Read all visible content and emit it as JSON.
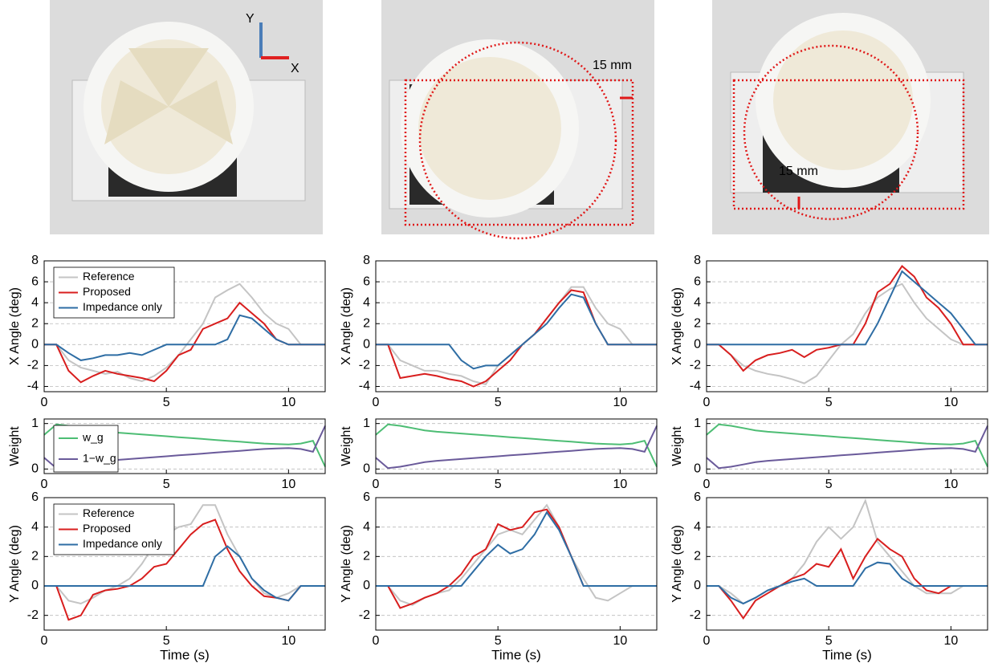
{
  "photos": [
    {
      "labels": [
        "Y",
        "X"
      ]
    },
    {
      "labels": [
        "15 mm"
      ]
    },
    {
      "labels": [
        "15 mm"
      ]
    }
  ],
  "chart_data": [
    {
      "type": "line",
      "ylabel": "X Angle (deg)",
      "legend": "upper left",
      "grid": true,
      "xlim": [
        0,
        11.5
      ],
      "xticks": [
        0,
        5,
        10
      ],
      "ylim": [
        -4.5,
        8
      ],
      "yticks": [
        -4,
        -2,
        0,
        2,
        4,
        6,
        8
      ],
      "x": [
        0,
        0.5,
        1,
        1.5,
        2,
        2.5,
        3,
        3.5,
        4,
        4.5,
        5,
        5.5,
        6,
        6.5,
        7,
        7.5,
        8,
        8.5,
        9,
        9.5,
        10,
        10.5,
        11,
        11.5
      ],
      "series": [
        {
          "name": "Reference",
          "color": "#c4c4c4",
          "values": [
            0,
            0,
            -1.5,
            -2.2,
            -2.5,
            -2.8,
            -2.6,
            -3.2,
            -3.5,
            -3,
            -2.2,
            -1,
            0.5,
            2,
            4.5,
            5.2,
            5.8,
            4.5,
            3,
            2,
            1.5,
            0,
            0,
            0
          ]
        },
        {
          "name": "Proposed",
          "color": "#d81e1e",
          "values": [
            0,
            0,
            -2.5,
            -3.6,
            -3,
            -2.5,
            -2.8,
            -3,
            -3.2,
            -3.5,
            -2.5,
            -1,
            -0.5,
            1.5,
            2,
            2.5,
            4,
            3,
            2,
            0.5,
            0,
            0,
            0,
            0
          ]
        },
        {
          "name": "Impedance only",
          "color": "#2e6da4",
          "values": [
            0,
            0,
            -0.8,
            -1.5,
            -1.3,
            -1,
            -1,
            -0.8,
            -1,
            -0.5,
            0,
            0,
            0,
            0,
            0,
            0.5,
            2.8,
            2.5,
            1.5,
            0.5,
            0,
            0,
            0,
            0
          ]
        }
      ]
    },
    {
      "type": "line",
      "ylabel": "Weight",
      "legend": "upper left",
      "grid": true,
      "xlim": [
        0,
        11.5
      ],
      "xticks": [
        0,
        5,
        10
      ],
      "ylim": [
        -0.1,
        1.1
      ],
      "yticks": [
        0,
        1
      ],
      "x": [
        0,
        0.5,
        1,
        1.5,
        2,
        2.5,
        3,
        3.5,
        4,
        4.5,
        5,
        5.5,
        6,
        6.5,
        7,
        7.5,
        8,
        8.5,
        9,
        9.5,
        10,
        10.5,
        11,
        11.5
      ],
      "series": [
        {
          "name": "w_g",
          "color": "#4dbd74",
          "values": [
            0.75,
            0.98,
            0.95,
            0.9,
            0.85,
            0.82,
            0.8,
            0.78,
            0.76,
            0.74,
            0.72,
            0.7,
            0.68,
            0.66,
            0.64,
            0.62,
            0.6,
            0.58,
            0.56,
            0.55,
            0.54,
            0.56,
            0.62,
            0.05
          ]
        },
        {
          "name": "1−w_g",
          "color": "#6a5a9a",
          "values": [
            0.25,
            0.02,
            0.05,
            0.1,
            0.15,
            0.18,
            0.2,
            0.22,
            0.24,
            0.26,
            0.28,
            0.3,
            0.32,
            0.34,
            0.36,
            0.38,
            0.4,
            0.42,
            0.44,
            0.45,
            0.46,
            0.44,
            0.38,
            0.95
          ]
        }
      ]
    },
    {
      "type": "line",
      "ylabel": "Y Angle (deg)",
      "xlabel": "Time (s)",
      "legend": "upper left",
      "grid": true,
      "xlim": [
        0,
        11.5
      ],
      "xticks": [
        0,
        5,
        10
      ],
      "ylim": [
        -3,
        6
      ],
      "yticks": [
        -2,
        0,
        2,
        4,
        6
      ],
      "x": [
        0,
        0.5,
        1,
        1.5,
        2,
        2.5,
        3,
        3.5,
        4,
        4.5,
        5,
        5.5,
        6,
        6.5,
        7,
        7.5,
        8,
        8.5,
        9,
        9.5,
        10,
        10.5,
        11,
        11.5
      ],
      "series": [
        {
          "name": "Reference",
          "color": "#c4c4c4",
          "values": [
            0,
            0,
            -1,
            -1.2,
            -0.8,
            -0.3,
            0,
            0.5,
            1.5,
            2.8,
            3.5,
            4,
            4.2,
            5.5,
            5.5,
            3.5,
            2,
            0.5,
            -0.5,
            -0.8,
            -0.5,
            0,
            0,
            0
          ]
        },
        {
          "name": "Proposed",
          "color": "#d81e1e",
          "values": [
            0,
            0,
            -2.3,
            -2,
            -0.6,
            -0.3,
            -0.2,
            0,
            0.5,
            1.3,
            1.5,
            2.5,
            3.5,
            4.2,
            4.5,
            2.5,
            1,
            0,
            -0.7,
            -0.8,
            -1,
            0,
            0,
            0
          ]
        },
        {
          "name": "Impedance only",
          "color": "#2e6da4",
          "values": [
            0,
            0,
            0,
            0,
            0,
            0,
            0,
            0,
            0,
            0,
            0,
            0,
            0,
            0,
            2,
            2.7,
            2,
            0.5,
            -0.3,
            -0.8,
            -1,
            0,
            0,
            0
          ]
        }
      ]
    },
    {
      "type": "line",
      "ylabel": "X Angle (deg)",
      "grid": true,
      "xlim": [
        0,
        11.5
      ],
      "xticks": [
        0,
        5,
        10
      ],
      "ylim": [
        -4.5,
        8
      ],
      "yticks": [
        -4,
        -2,
        0,
        2,
        4,
        6,
        8
      ],
      "x": [
        0,
        0.5,
        1,
        1.5,
        2,
        2.5,
        3,
        3.5,
        4,
        4.5,
        5,
        5.5,
        6,
        6.5,
        7,
        7.5,
        8,
        8.5,
        9,
        9.5,
        10,
        10.5,
        11,
        11.5
      ],
      "series": [
        {
          "color": "#c4c4c4",
          "values": [
            0,
            0,
            -1.5,
            -2,
            -2.5,
            -2.5,
            -2.8,
            -3,
            -3.5,
            -3.8,
            -2,
            -1,
            0,
            1,
            2.5,
            4,
            5.5,
            5.5,
            3.5,
            2,
            1.5,
            0,
            0,
            0
          ]
        },
        {
          "color": "#d81e1e",
          "values": [
            0,
            0,
            -3.2,
            -3,
            -2.8,
            -3,
            -3.3,
            -3.5,
            -4,
            -3.5,
            -2.5,
            -1.5,
            0,
            1,
            2.5,
            4,
            5.2,
            5,
            2,
            0,
            0,
            0,
            0,
            0
          ]
        },
        {
          "color": "#2e6da4",
          "values": [
            0,
            0,
            0,
            0,
            0,
            0,
            0,
            -1.5,
            -2.3,
            -2,
            -2,
            -1,
            0,
            1,
            2,
            3.5,
            4.8,
            4.5,
            2,
            0,
            0,
            0,
            0,
            0
          ]
        }
      ]
    },
    {
      "type": "line",
      "ylabel": "Weight",
      "grid": true,
      "xlim": [
        0,
        11.5
      ],
      "xticks": [
        0,
        5,
        10
      ],
      "ylim": [
        -0.1,
        1.1
      ],
      "yticks": [
        0,
        1
      ],
      "x": [
        0,
        0.5,
        1,
        1.5,
        2,
        2.5,
        3,
        3.5,
        4,
        4.5,
        5,
        5.5,
        6,
        6.5,
        7,
        7.5,
        8,
        8.5,
        9,
        9.5,
        10,
        10.5,
        11,
        11.5
      ],
      "series": [
        {
          "color": "#4dbd74",
          "values": [
            0.75,
            0.98,
            0.95,
            0.9,
            0.85,
            0.82,
            0.8,
            0.78,
            0.76,
            0.74,
            0.72,
            0.7,
            0.68,
            0.66,
            0.64,
            0.62,
            0.6,
            0.58,
            0.56,
            0.55,
            0.54,
            0.56,
            0.62,
            0.05
          ]
        },
        {
          "color": "#6a5a9a",
          "values": [
            0.25,
            0.02,
            0.05,
            0.1,
            0.15,
            0.18,
            0.2,
            0.22,
            0.24,
            0.26,
            0.28,
            0.3,
            0.32,
            0.34,
            0.36,
            0.38,
            0.4,
            0.42,
            0.44,
            0.45,
            0.46,
            0.44,
            0.38,
            0.95
          ]
        }
      ]
    },
    {
      "type": "line",
      "ylabel": "Y Angle (deg)",
      "xlabel": "Time (s)",
      "grid": true,
      "xlim": [
        0,
        11.5
      ],
      "xticks": [
        0,
        5,
        10
      ],
      "ylim": [
        -3,
        6
      ],
      "yticks": [
        -2,
        0,
        2,
        4,
        6
      ],
      "x": [
        0,
        0.5,
        1,
        1.5,
        2,
        2.5,
        3,
        3.5,
        4,
        4.5,
        5,
        5.5,
        6,
        6.5,
        7,
        7.5,
        8,
        8.5,
        9,
        9.5,
        10,
        10.5,
        11,
        11.5
      ],
      "series": [
        {
          "color": "#c4c4c4",
          "values": [
            0,
            0,
            -1,
            -1.3,
            -0.8,
            -0.5,
            -0.3,
            0.5,
            1.5,
            2.5,
            3.5,
            3.8,
            3.5,
            4.5,
            5.5,
            4,
            2,
            0.5,
            -0.8,
            -1,
            -0.5,
            0,
            0,
            0
          ]
        },
        {
          "color": "#d81e1e",
          "values": [
            0,
            0,
            -1.5,
            -1.2,
            -0.8,
            -0.5,
            0,
            0.8,
            2,
            2.5,
            4.2,
            3.8,
            4,
            5,
            5.2,
            4,
            2,
            0,
            0,
            0,
            0,
            0,
            0,
            0
          ]
        },
        {
          "color": "#2e6da4",
          "values": [
            0,
            0,
            0,
            0,
            0,
            0,
            0,
            0,
            1,
            2,
            2.8,
            2.2,
            2.5,
            3.5,
            5,
            3.8,
            2,
            0,
            0,
            0,
            0,
            0,
            0,
            0
          ]
        }
      ]
    },
    {
      "type": "line",
      "ylabel": "X Angle (deg)",
      "grid": true,
      "xlim": [
        0,
        11.5
      ],
      "xticks": [
        0,
        5,
        10
      ],
      "ylim": [
        -4.5,
        8
      ],
      "yticks": [
        -4,
        -2,
        0,
        2,
        4,
        6,
        8
      ],
      "x": [
        0,
        0.5,
        1,
        1.5,
        2,
        2.5,
        3,
        3.5,
        4,
        4.5,
        5,
        5.5,
        6,
        6.5,
        7,
        7.5,
        8,
        8.5,
        9,
        9.5,
        10,
        10.5,
        11,
        11.5
      ],
      "series": [
        {
          "color": "#c4c4c4",
          "values": [
            0,
            0,
            -1,
            -2,
            -2.5,
            -2.8,
            -3,
            -3.3,
            -3.7,
            -3,
            -1.5,
            0,
            1,
            3,
            4.5,
            5.3,
            5.8,
            4,
            2.5,
            1.5,
            0.5,
            0,
            0,
            0
          ]
        },
        {
          "color": "#d81e1e",
          "values": [
            0,
            0,
            -1,
            -2.5,
            -1.5,
            -1,
            -0.8,
            -0.5,
            -1.2,
            -0.5,
            -0.3,
            0,
            0,
            2,
            5,
            5.8,
            7.5,
            6.5,
            4.5,
            3.5,
            2,
            0,
            0,
            0
          ]
        },
        {
          "color": "#2e6da4",
          "values": [
            0,
            0,
            0,
            0,
            0,
            0,
            0,
            0,
            0,
            0,
            0,
            0,
            0,
            0,
            2,
            4.5,
            7,
            6,
            5,
            4,
            3,
            1.5,
            0,
            0
          ]
        }
      ]
    },
    {
      "type": "line",
      "ylabel": "Weight",
      "grid": true,
      "xlim": [
        0,
        11.5
      ],
      "xticks": [
        0,
        5,
        10
      ],
      "ylim": [
        -0.1,
        1.1
      ],
      "yticks": [
        0,
        1
      ],
      "x": [
        0,
        0.5,
        1,
        1.5,
        2,
        2.5,
        3,
        3.5,
        4,
        4.5,
        5,
        5.5,
        6,
        6.5,
        7,
        7.5,
        8,
        8.5,
        9,
        9.5,
        10,
        10.5,
        11,
        11.5
      ],
      "series": [
        {
          "color": "#4dbd74",
          "values": [
            0.75,
            0.98,
            0.95,
            0.9,
            0.85,
            0.82,
            0.8,
            0.78,
            0.76,
            0.74,
            0.72,
            0.7,
            0.68,
            0.66,
            0.64,
            0.62,
            0.6,
            0.58,
            0.56,
            0.55,
            0.54,
            0.56,
            0.62,
            0.05
          ]
        },
        {
          "color": "#6a5a9a",
          "values": [
            0.25,
            0.02,
            0.05,
            0.1,
            0.15,
            0.18,
            0.2,
            0.22,
            0.24,
            0.26,
            0.28,
            0.3,
            0.32,
            0.34,
            0.36,
            0.38,
            0.4,
            0.42,
            0.44,
            0.45,
            0.46,
            0.44,
            0.38,
            0.95
          ]
        }
      ]
    },
    {
      "type": "line",
      "ylabel": "Y Angle (deg)",
      "xlabel": "Time (s)",
      "grid": true,
      "xlim": [
        0,
        11.5
      ],
      "xticks": [
        0,
        5,
        10
      ],
      "ylim": [
        -3,
        6
      ],
      "yticks": [
        -2,
        0,
        2,
        4,
        6
      ],
      "x": [
        0,
        0.5,
        1,
        1.5,
        2,
        2.5,
        3,
        3.5,
        4,
        4.5,
        5,
        5.5,
        6,
        6.5,
        7,
        7.5,
        8,
        8.5,
        9,
        9.5,
        10,
        10.5,
        11,
        11.5
      ],
      "series": [
        {
          "color": "#c4c4c4",
          "values": [
            0,
            0,
            -0.5,
            -1.2,
            -0.8,
            -0.3,
            0,
            0.5,
            1.5,
            3,
            4,
            3.2,
            4,
            5.8,
            3,
            2,
            1,
            0,
            -0.5,
            -0.5,
            -0.5,
            0,
            0,
            0
          ]
        },
        {
          "color": "#d81e1e",
          "values": [
            0,
            0,
            -1,
            -2.2,
            -1,
            -0.5,
            0,
            0.5,
            0.8,
            1.5,
            1.3,
            2.5,
            0.5,
            2,
            3.2,
            2.5,
            2,
            0.5,
            -0.3,
            -0.5,
            0,
            0,
            0,
            0
          ]
        },
        {
          "color": "#2e6da4",
          "values": [
            0,
            0,
            -0.8,
            -1.2,
            -0.8,
            -0.3,
            0,
            0.3,
            0.5,
            0,
            0,
            0,
            0,
            1.2,
            1.6,
            1.5,
            0.5,
            0,
            0,
            0,
            0,
            0,
            0,
            0
          ]
        }
      ]
    }
  ]
}
